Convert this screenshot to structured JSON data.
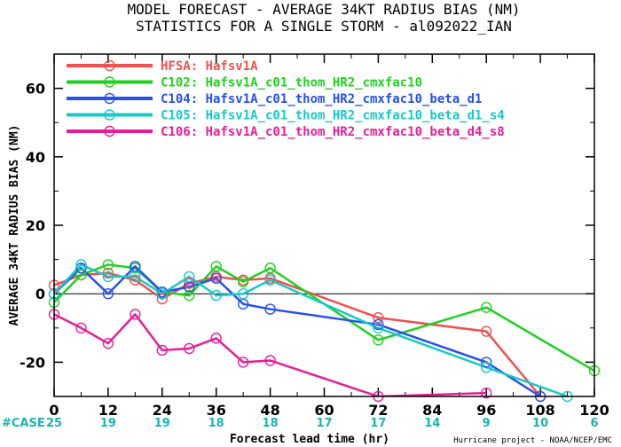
{
  "chart_data": {
    "type": "line",
    "title": "MODEL FORECAST - AVERAGE 34KT RADIUS BIAS (NM)",
    "subtitle": "STATISTICS FOR A SINGLE STORM - al092022_IAN",
    "xlabel": "Forecast lead time (hr)",
    "ylabel": "AVERAGE 34KT RADIUS BIAS (NM)",
    "xlim": [
      0,
      120
    ],
    "ylim": [
      -30,
      70
    ],
    "x_ticks": [
      0,
      12,
      24,
      36,
      48,
      60,
      72,
      84,
      96,
      108,
      120
    ],
    "y_ticks": [
      -20,
      0,
      20,
      40,
      60
    ],
    "zero_line": true,
    "legend_position": "top-left",
    "case_label": "#CASE",
    "cases": [
      {
        "x": 0,
        "n": "25"
      },
      {
        "x": 12,
        "n": "19"
      },
      {
        "x": 24,
        "n": "19"
      },
      {
        "x": 36,
        "n": "18"
      },
      {
        "x": 48,
        "n": "18"
      },
      {
        "x": 60,
        "n": "17"
      },
      {
        "x": 72,
        "n": "17"
      },
      {
        "x": 84,
        "n": "14"
      },
      {
        "x": 96,
        "n": "9"
      },
      {
        "x": 108,
        "n": "10"
      },
      {
        "x": 120,
        "n": "6"
      }
    ],
    "series": [
      {
        "name": "HFSA: Hafsv1A",
        "color": "#f05050",
        "points": [
          [
            0,
            2.5
          ],
          [
            6,
            5.5
          ],
          [
            12,
            6
          ],
          [
            18,
            4
          ],
          [
            24,
            -1.5
          ],
          [
            30,
            3
          ],
          [
            36,
            5
          ],
          [
            42,
            4
          ],
          [
            48,
            4.5
          ],
          [
            72,
            -7
          ],
          [
            96,
            -11
          ],
          [
            108,
            -30
          ]
        ]
      },
      {
        "name": "C102: Hafsv1A_c01_thom_HR2_cmxfac10",
        "color": "#1ed21e",
        "points": [
          [
            0,
            -2.5
          ],
          [
            6,
            5.5
          ],
          [
            12,
            8.5
          ],
          [
            18,
            7.5
          ],
          [
            24,
            0.5
          ],
          [
            30,
            -0.5
          ],
          [
            36,
            8
          ],
          [
            42,
            3.5
          ],
          [
            48,
            7.5
          ],
          [
            72,
            -13.5
          ],
          [
            96,
            -4
          ],
          [
            120,
            -22.5
          ]
        ]
      },
      {
        "name": "C104: Hafsv1A_c01_thom_HR2_cmxfac10_beta_d1",
        "color": "#2850f0",
        "points": [
          [
            0,
            0
          ],
          [
            6,
            7.5
          ],
          [
            12,
            0
          ],
          [
            18,
            8
          ],
          [
            24,
            0.5
          ],
          [
            30,
            2
          ],
          [
            36,
            4.5
          ],
          [
            42,
            -3
          ],
          [
            48,
            -4.5
          ],
          [
            72,
            -9
          ],
          [
            96,
            -20
          ],
          [
            108,
            -30
          ]
        ]
      },
      {
        "name": "C105: Hafsv1A_c01_thom_HR2_cmxfac10_beta_d1_s4",
        "color": "#19c8c8",
        "points": [
          [
            0,
            0
          ],
          [
            6,
            8.5
          ],
          [
            12,
            5
          ],
          [
            18,
            5
          ],
          [
            24,
            0
          ],
          [
            30,
            5
          ],
          [
            36,
            -0.5
          ],
          [
            42,
            0
          ],
          [
            48,
            4
          ],
          [
            72,
            -10
          ],
          [
            96,
            -21.5
          ],
          [
            114,
            -30
          ]
        ]
      },
      {
        "name": "C106: Hafsv1A_c01_thom_HR2_cmxfac10_beta_d4_s8",
        "color": "#e61e96",
        "points": [
          [
            0,
            -6
          ],
          [
            6,
            -10
          ],
          [
            12,
            -14.5
          ],
          [
            18,
            -6
          ],
          [
            24,
            -16.5
          ],
          [
            30,
            -16
          ],
          [
            36,
            -13
          ],
          [
            42,
            -20
          ],
          [
            48,
            -19.5
          ],
          [
            72,
            -30
          ],
          [
            96,
            -29
          ]
        ]
      }
    ]
  },
  "credit": {
    "text": "Hurricane project - NOAA/NCEP/EMC"
  }
}
